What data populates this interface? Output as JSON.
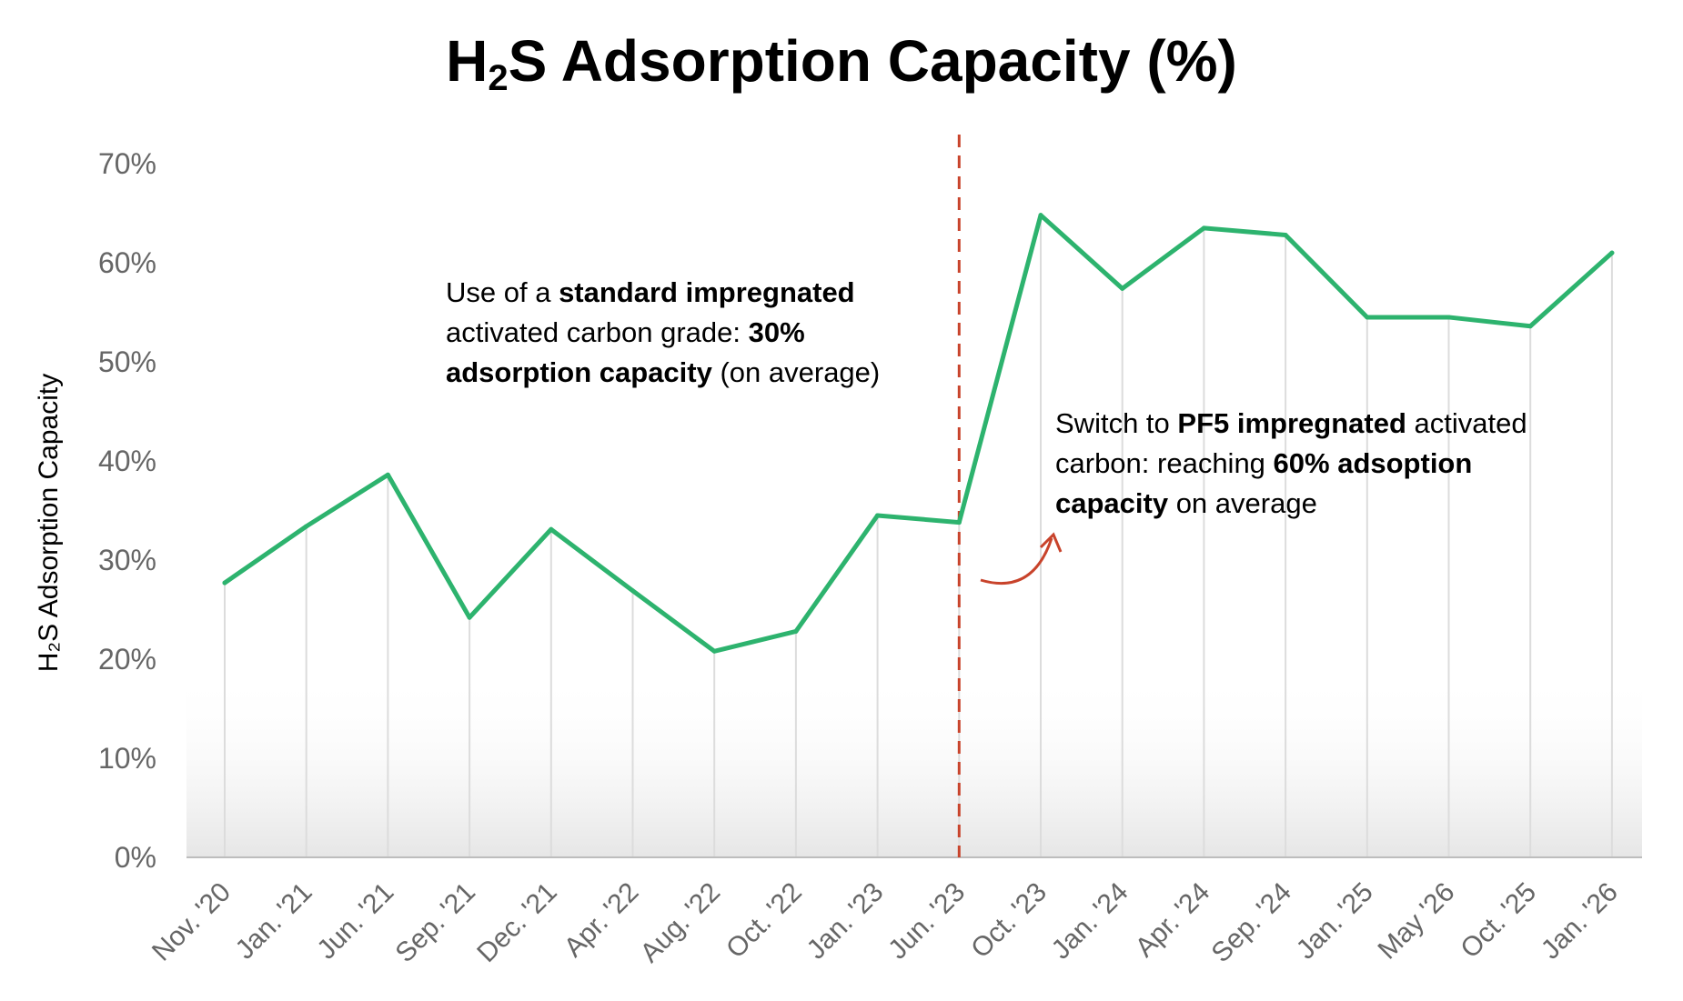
{
  "chart_data": {
    "type": "line",
    "title_main": "H",
    "title_sub": "2",
    "title_rest": "S Adsorption Capacity (%)",
    "ylabel": "H₂S Adsorption Capacity",
    "categories": [
      "Nov. '20",
      "Jan. '21",
      "Jun. '21",
      "Sep. '21",
      "Dec. '21",
      "Apr. '22",
      "Aug. '22",
      "Oct. '22",
      "Jan. '23",
      "Jun. '23",
      "Oct. '23",
      "Jan. '24",
      "Apr. '24",
      "Sep. '24",
      "Jan. '25",
      "May '26",
      "Oct. '25",
      "Jan. '26"
    ],
    "values": [
      27.7,
      33.4,
      38.6,
      24.2,
      33.1,
      26.9,
      20.8,
      22.8,
      34.5,
      33.8,
      64.8,
      57.4,
      63.5,
      62.8,
      54.5,
      54.5,
      53.6,
      61.0
    ],
    "ylim": [
      0,
      70
    ],
    "yticks": [
      0,
      10,
      20,
      30,
      40,
      50,
      60,
      70
    ],
    "ytick_labels": [
      "0%",
      "10%",
      "20%",
      "30%",
      "40%",
      "50%",
      "60%",
      "70%"
    ],
    "vertical_marker_category": "Jun. '23",
    "grid": "vertical",
    "line_color": "#2db36e",
    "marker_color": "#c8432b",
    "annotations": {
      "left": {
        "p1": "Use of a ",
        "b1": "standard impregnated",
        "p2": "activated carbon grade: ",
        "b2": "30%",
        "b3": "adsorption capacity",
        "p3": " (on average)"
      },
      "right": {
        "p1": "Switch to ",
        "b1": "PF5 impregnated",
        "p2": " activated",
        "p3": "carbon: reaching ",
        "b2": "60% adsoption",
        "b3": "capacity",
        "p4": " on average"
      }
    }
  }
}
